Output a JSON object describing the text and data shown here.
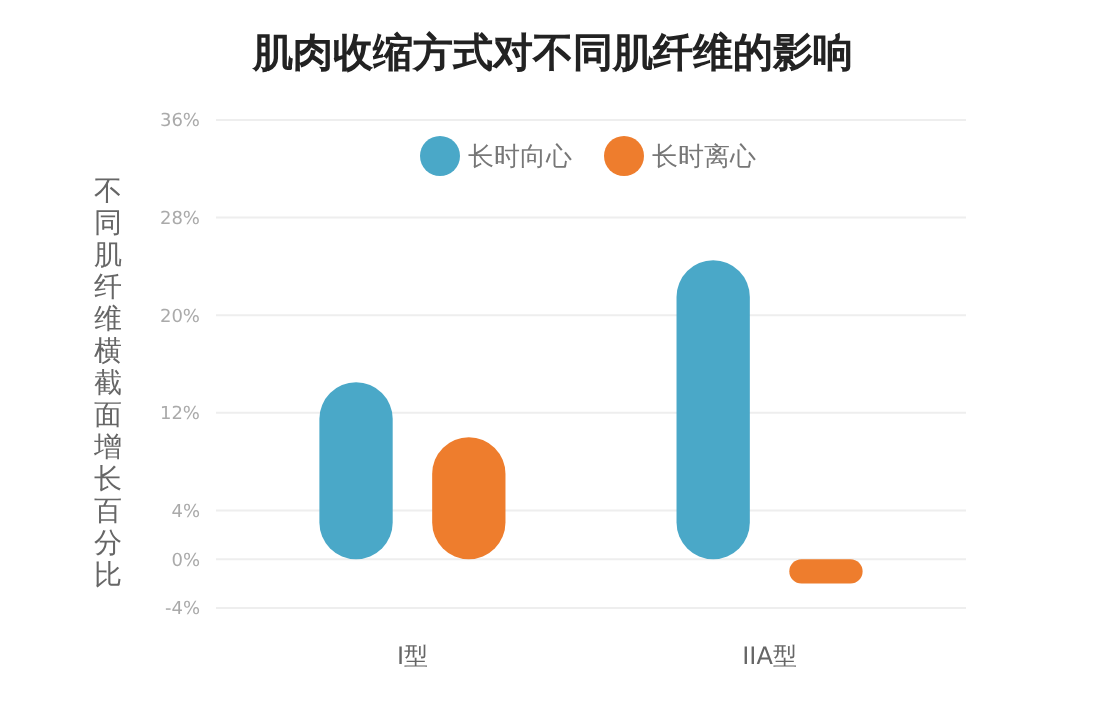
{
  "chart_data": {
    "type": "bar",
    "title": "肌肉收缩方式对不同肌纤维的影响",
    "ylabel": "不同肌纤维横截面增长百分比",
    "categories": [
      "I型",
      "IIA型"
    ],
    "series": [
      {
        "name": "长时向心",
        "color": "#4aa8c8",
        "values": [
          14.5,
          24.5
        ]
      },
      {
        "name": "长时离心",
        "color": "#ee7d2d",
        "values": [
          10,
          -2
        ]
      }
    ],
    "ylim": [
      -4,
      36
    ],
    "yticks": [
      {
        "value": -4,
        "label": "-4%"
      },
      {
        "value": 0,
        "label": "0%"
      },
      {
        "value": 4,
        "label": "4%"
      },
      {
        "value": 12,
        "label": "12%"
      },
      {
        "value": 20,
        "label": "20%"
      },
      {
        "value": 28,
        "label": "28%"
      },
      {
        "value": 36,
        "label": "36%"
      }
    ],
    "grid": "y",
    "legend": "top"
  }
}
